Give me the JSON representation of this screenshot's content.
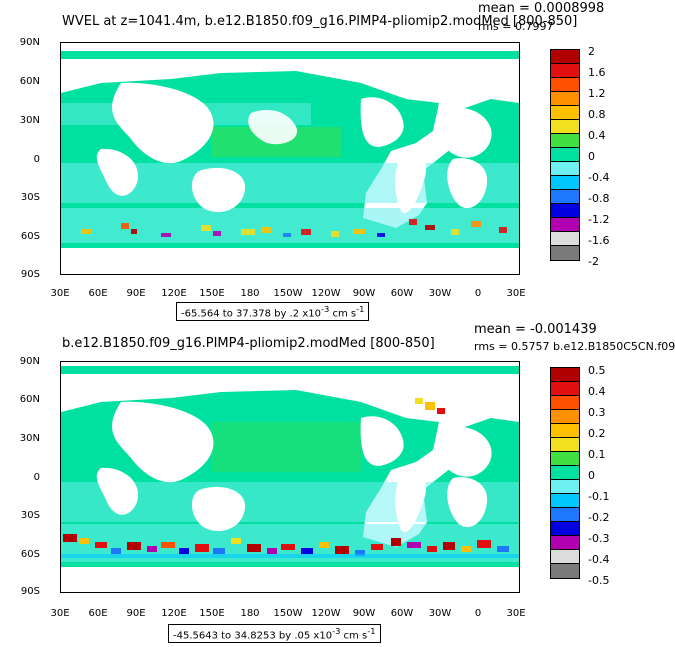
{
  "panels": [
    {
      "title": "WVEL at z=1041.4m, b.e12.B1850.f09_g16.PIMP4-pliomip2.modMed [800-850]",
      "mean": "mean = 0.0008998",
      "rms": "rms = 0.7997",
      "range": "-65.564 to 37.378 by .2 x10",
      "range_exp": "-3",
      "range_units": " cm s",
      "range_units_exp": "-1",
      "colorbar_labels": [
        "2",
        "1.6",
        "1.2",
        "0.8",
        "0.4",
        "0",
        "-0.4",
        "-0.8",
        "-1.2",
        "-1.6",
        "-2"
      ]
    },
    {
      "title": "b.e12.B1850.f09_g16.PIMP4-pliomip2.modMed [800-850]",
      "mean": "mean = -0.001439",
      "rms": "rms = 0.5757 b.e12.B1850C5CN.f09",
      "range": "-45.5643 to 34.8253 by .05 x10",
      "range_exp": "-3",
      "range_units": " cm s",
      "range_units_exp": "-1",
      "colorbar_labels": [
        "0.5",
        "0.4",
        "0.3",
        "0.2",
        "0.1",
        "0",
        "-0.1",
        "-0.2",
        "-0.3",
        "-0.4",
        "-0.5"
      ]
    }
  ],
  "y_ticks": [
    "90N",
    "60N",
    "30N",
    "0",
    "30S",
    "60S",
    "90S"
  ],
  "x_ticks": [
    "30E",
    "60E",
    "90E",
    "120E",
    "150E",
    "180",
    "150W",
    "120W",
    "90W",
    "60W",
    "30W",
    "0",
    "30E"
  ],
  "colors": [
    "#7a7a7a",
    "#dcdcdc",
    "#b000b0",
    "#0000e0",
    "#1e78ff",
    "#00c8ff",
    "#6ef0f0",
    "#00e0a0",
    "#40e040",
    "#f0e020",
    "#ffc000",
    "#ff9000",
    "#ff5000",
    "#e01010",
    "#b00000"
  ]
}
